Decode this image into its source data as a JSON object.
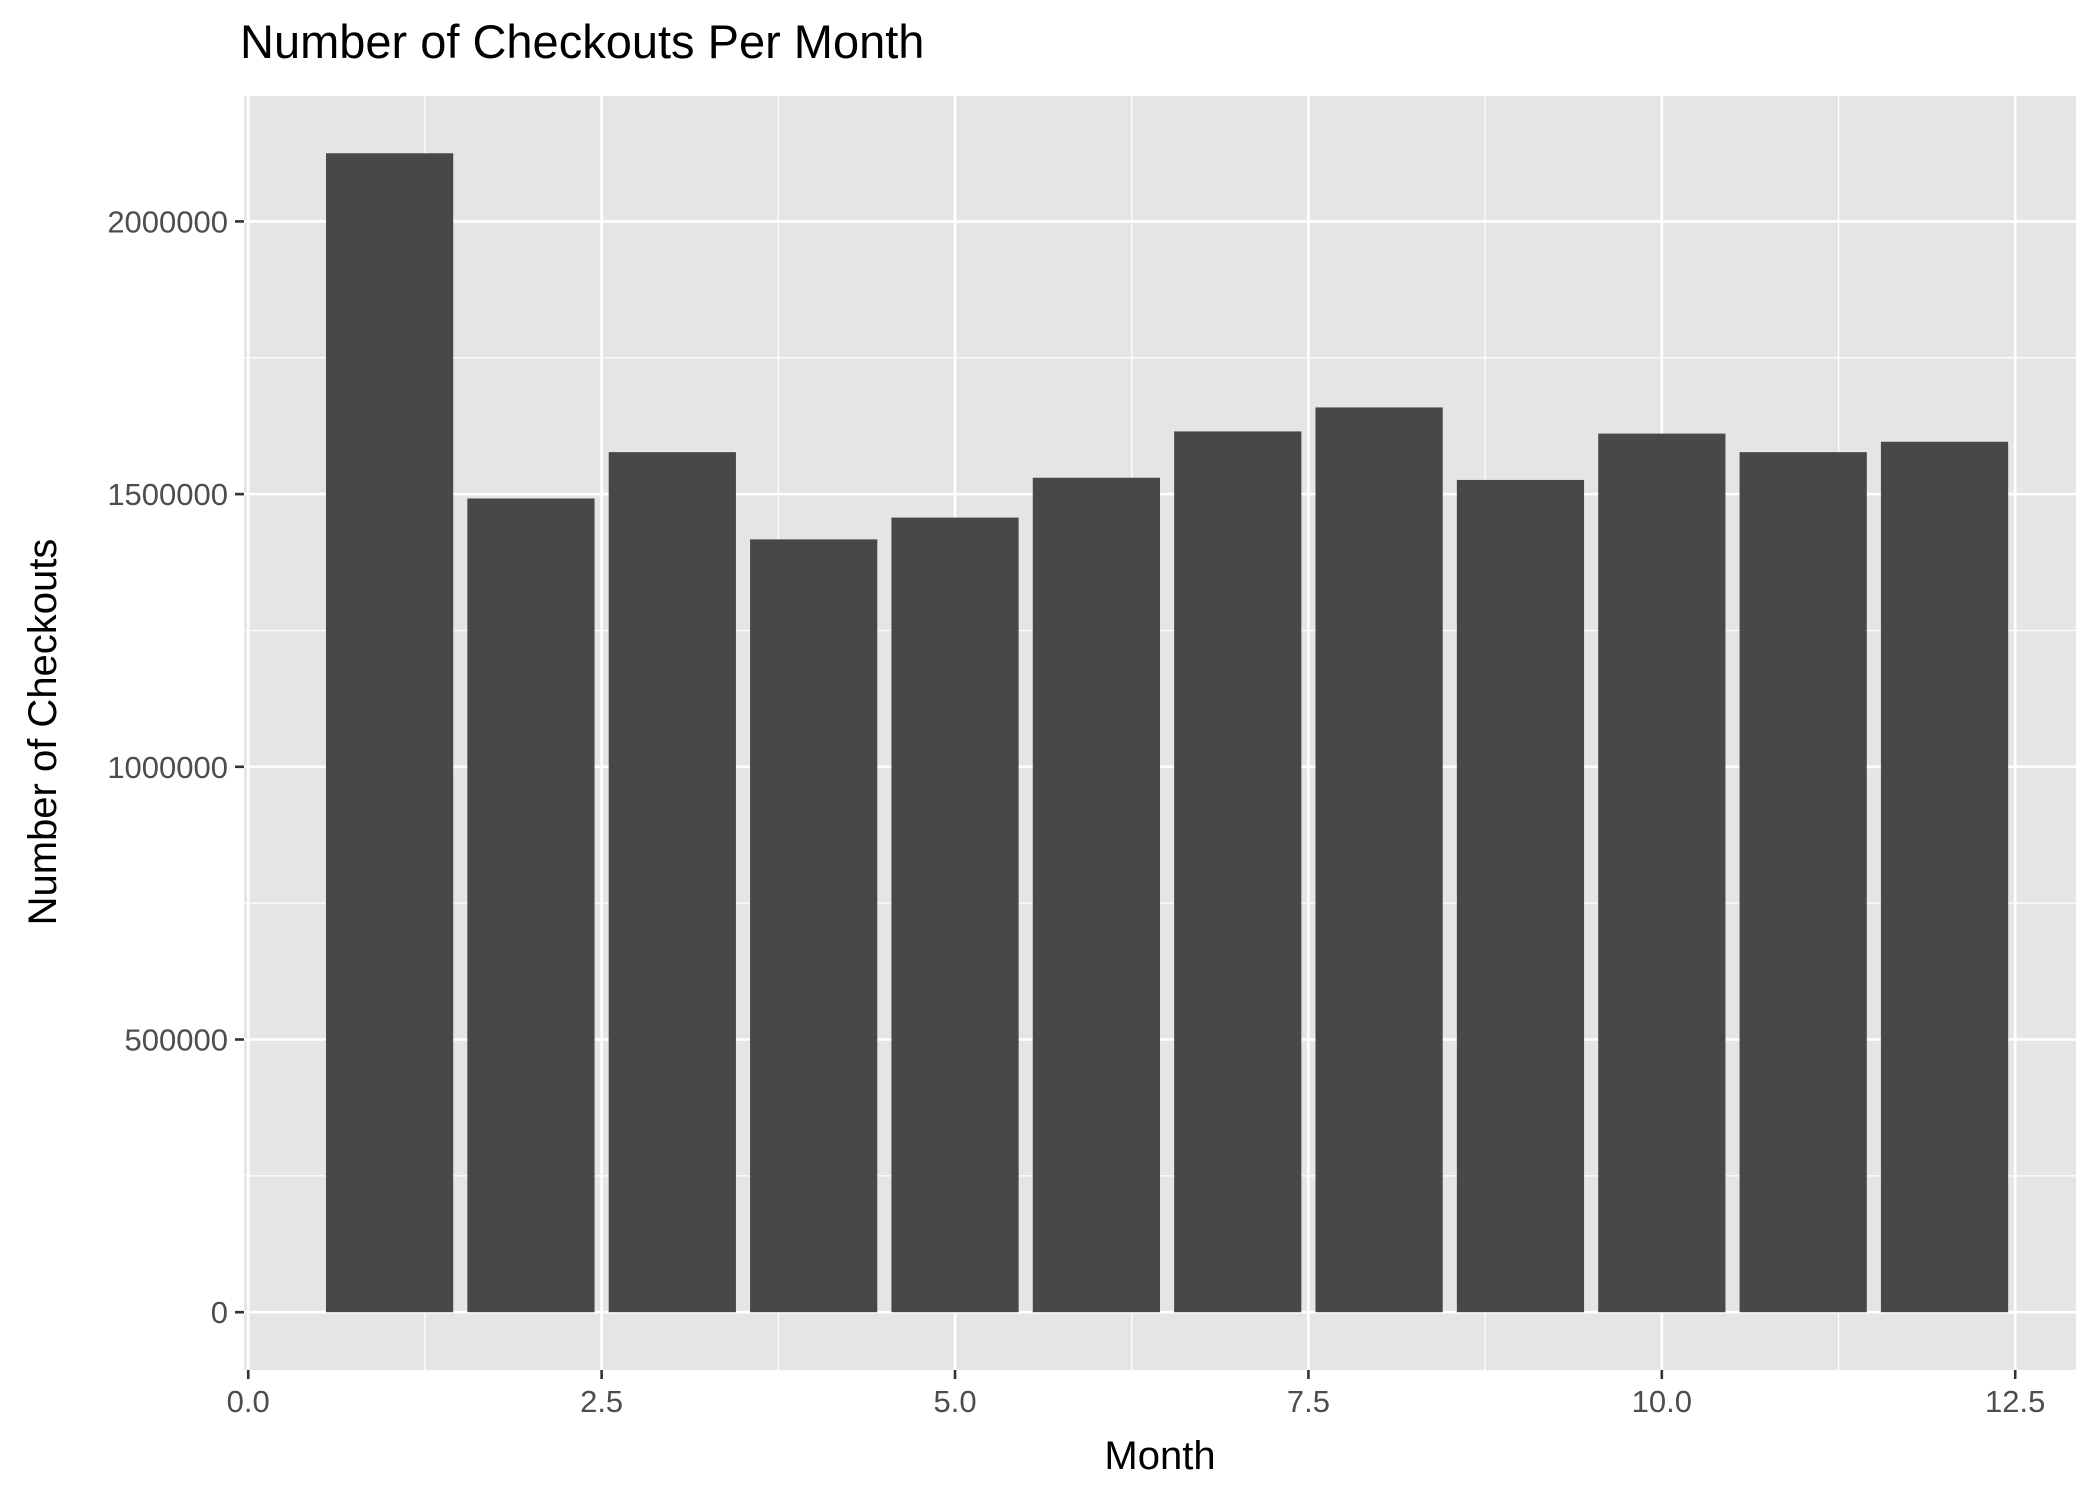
{
  "chart_data": {
    "type": "bar",
    "title": "Number of Checkouts Per Month",
    "xlabel": "Month",
    "ylabel": "Number of Checkouts",
    "x": [
      1,
      2,
      3,
      4,
      5,
      6,
      7,
      8,
      9,
      10,
      11,
      12
    ],
    "values": [
      2125000,
      1492000,
      1577000,
      1417000,
      1457000,
      1530000,
      1615000,
      1659000,
      1526000,
      1611000,
      1577000,
      1596000
    ],
    "xlim": [
      -0.03,
      12.93
    ],
    "ylim": [
      -106000,
      2230000
    ],
    "x_ticks": [
      0,
      2.5,
      5,
      7.5,
      10,
      12.5
    ],
    "x_tick_labels": [
      "0.0",
      "2.5",
      "5.0",
      "7.5",
      "10.0",
      "12.5"
    ],
    "y_ticks": [
      0,
      500000,
      1000000,
      1500000,
      2000000
    ],
    "y_tick_labels": [
      "0",
      "500000",
      "1000000",
      "1500000",
      "2000000"
    ],
    "grid": true,
    "colors": {
      "bar": "#484848",
      "panel": "#e5e5e5",
      "grid": "#ffffff",
      "tick": "#333333"
    }
  }
}
